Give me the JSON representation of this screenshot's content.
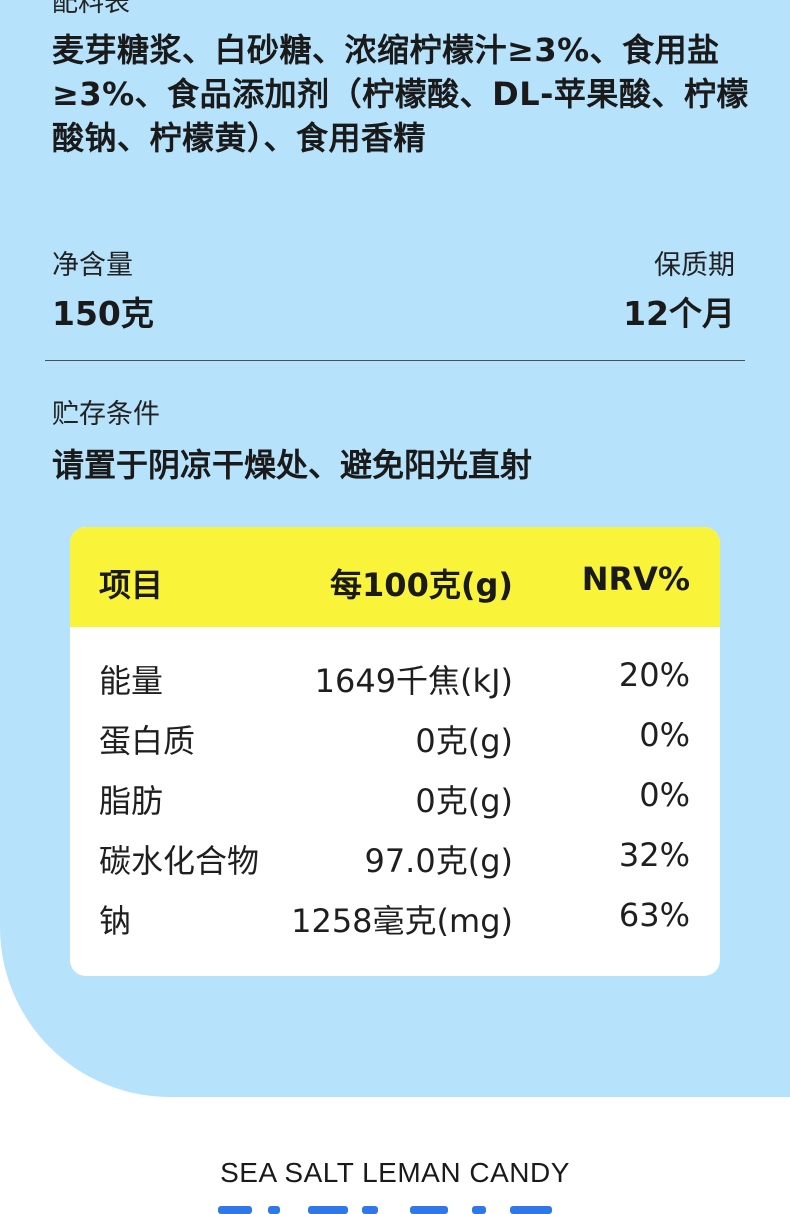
{
  "ingredients": {
    "heading": "配料表",
    "text": "麦芽糖浆、白砂糖、浓缩柠檬汁≥3%、食用盐≥3%、食品添加剂（柠檬酸、DL-苹果酸、柠檬酸钠、柠檬黄）、食用香精"
  },
  "specs": {
    "net_label": "净含量",
    "net_value": "150克",
    "shelf_label": "保质期",
    "shelf_value": "12个月"
  },
  "storage": {
    "label": "贮存条件",
    "value": "请置于阴凉干燥处、避免阳光直射"
  },
  "nutrition": {
    "headers": [
      "项目",
      "每100克(g)",
      "NRV%"
    ],
    "rows": [
      [
        "能量",
        "1649千焦(kJ)",
        "20%"
      ],
      [
        "蛋白质",
        "0克(g)",
        "0%"
      ],
      [
        "脂肪",
        "0克(g)",
        "0%"
      ],
      [
        "碳水化合物",
        "97.0克(g)",
        "32%"
      ],
      [
        "钠",
        "1258毫克(mg)",
        "63%"
      ]
    ]
  },
  "footer": {
    "subtitle": "SEA SALT LEMAN CANDY"
  },
  "colors": {
    "panel_bg": "#b7e2fb",
    "table_header": "#f9f43a",
    "title_blue": "#2f78e9"
  }
}
